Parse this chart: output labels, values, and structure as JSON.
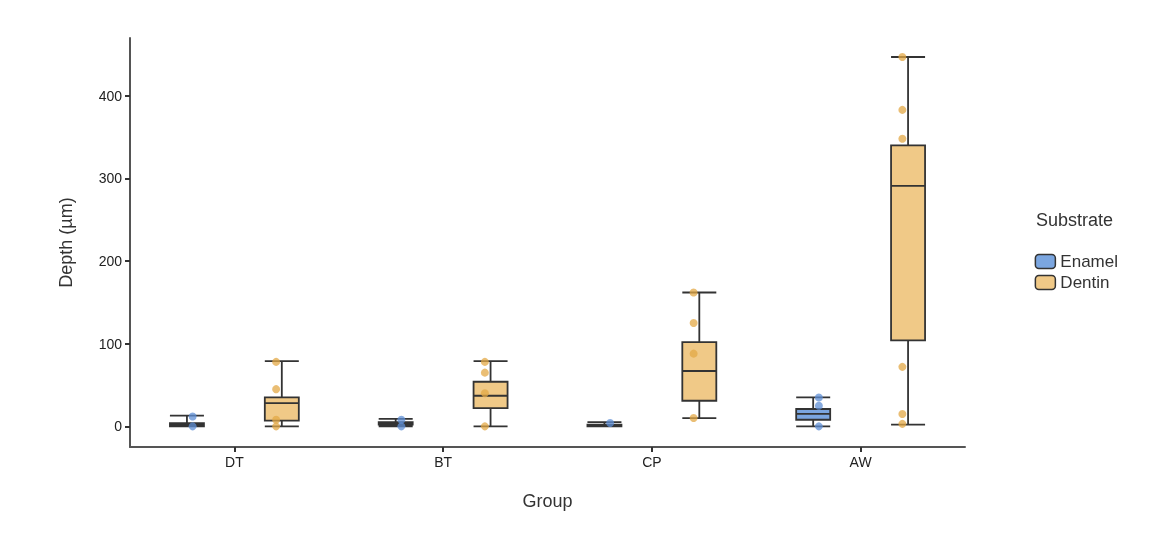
{
  "chart_data": {
    "type": "box",
    "xlabel": "Group",
    "ylabel": "Depth (µm)",
    "legend_title": "Substrate",
    "categories": [
      "DT",
      "BT",
      "CP",
      "AW"
    ],
    "ylim": [
      -25,
      470
    ],
    "yticks": [
      0,
      100,
      200,
      300,
      400
    ],
    "grid": false,
    "legend": "right",
    "series": [
      {
        "name": "Enamel",
        "color": "#7ba6e0",
        "boxes": [
          {
            "low": 0,
            "q1": 0,
            "median": 2,
            "q3": 4,
            "high": 13
          },
          {
            "low": 0,
            "q1": 2,
            "median": 4,
            "q3": 5,
            "high": 9
          },
          {
            "low": 0,
            "q1": 0,
            "median": 1,
            "q3": 2,
            "high": 5
          },
          {
            "low": 0,
            "q1": 8,
            "median": 15,
            "q3": 21,
            "high": 35
          }
        ]
      },
      {
        "name": "Dentin",
        "color": "#f0c987",
        "boxes": [
          {
            "low": 0,
            "q1": 7,
            "median": 28,
            "q3": 35,
            "high": 79
          },
          {
            "low": 0,
            "q1": 22,
            "median": 37,
            "q3": 54,
            "high": 79
          },
          {
            "low": 10,
            "q1": 31,
            "median": 67,
            "q3": 102,
            "high": 162
          },
          {
            "low": 2,
            "q1": 104,
            "median": 291,
            "q3": 340,
            "high": 447
          }
        ]
      },
      {
        "type": "scatter",
        "color": "#5f8fd6",
        "x": [
          "DT",
          "DT",
          "BT",
          "BT",
          "CP",
          "AW",
          "AW",
          "AW"
        ],
        "values": [
          12,
          0,
          8,
          0,
          4,
          35,
          25,
          0
        ]
      },
      {
        "type": "scatter",
        "color": "#e3a845",
        "x": [
          "DT",
          "DT",
          "DT",
          "DT",
          "BT",
          "BT",
          "BT",
          "BT",
          "CP",
          "CP",
          "CP",
          "CP",
          "AW",
          "AW",
          "AW",
          "AW",
          "AW",
          "AW"
        ],
        "values": [
          78,
          45,
          8,
          0,
          78,
          65,
          40,
          0,
          162,
          125,
          88,
          10,
          447,
          383,
          348,
          72,
          15,
          3
        ]
      }
    ]
  }
}
